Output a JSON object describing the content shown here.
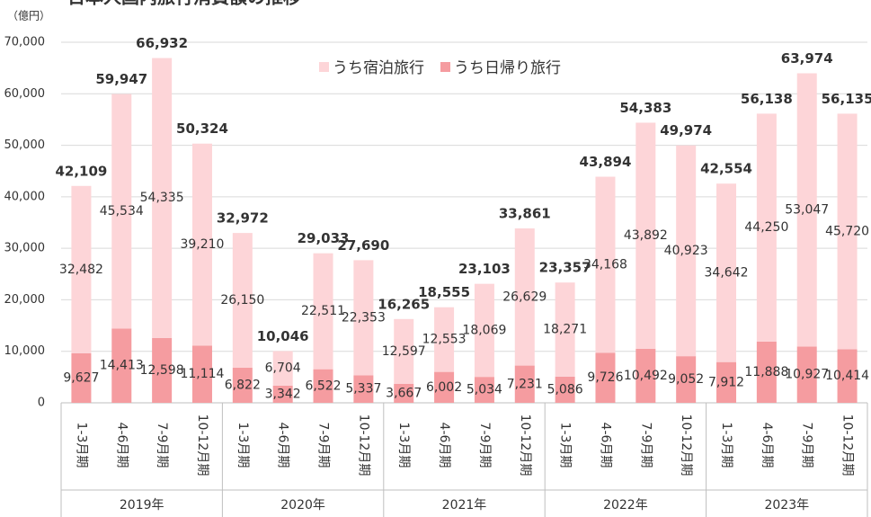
{
  "chart_data": {
    "type": "stacked-bar",
    "title": "日本人国内旅行消費額の推移",
    "y_unit": "（億円）",
    "categories": [
      "1-3月期",
      "4-6月期",
      "7-9月期",
      "10-12月期",
      "1-3月期",
      "4-6月期",
      "7-9月期",
      "10-12月期",
      "1-3月期",
      "4-6月期",
      "7-9月期",
      "10-12月期",
      "1-3月期",
      "4-6月期",
      "7-9月期",
      "10-12月期",
      "1-3月期",
      "4-6月期",
      "7-9月期",
      "10-12月期"
    ],
    "groups": [
      "2019年",
      "2020年",
      "2021年",
      "2022年",
      "2023年"
    ],
    "series": [
      {
        "name": "うち日帰り旅行",
        "color": "#f59ca0",
        "values": [
          9627,
          14413,
          12598,
          11114,
          6822,
          3342,
          6522,
          5337,
          3667,
          6002,
          5034,
          7231,
          5086,
          9726,
          10492,
          9052,
          7912,
          11888,
          10927,
          10414
        ],
        "value_labels": [
          "9,627",
          "14,413",
          "12,598",
          "11,114",
          "6,822",
          "3,342",
          "6,522",
          "5,337",
          "3,667",
          "6,002",
          "5,034",
          "7,231",
          "5,086",
          "9,726",
          "10,492",
          "9,052",
          "7,912",
          "11,888",
          "10,927",
          "10,414"
        ]
      },
      {
        "name": "うち宿泊旅行",
        "color": "#fdd5d8",
        "values": [
          32482,
          45534,
          54335,
          39210,
          26150,
          6704,
          22511,
          22353,
          12597,
          12553,
          18069,
          26629,
          18271,
          34168,
          43892,
          40923,
          34642,
          44250,
          53047,
          45720
        ],
        "value_labels": [
          "32,482",
          "45,534",
          "54,335",
          "39,210",
          "26,150",
          "6,704",
          "22,511",
          "22,353",
          "12,597",
          "12,553",
          "18,069",
          "26,629",
          "18,271",
          "34,168",
          "43,892",
          "40,923",
          "34,642",
          "44,250",
          "53,047",
          "45,720"
        ]
      }
    ],
    "totals": [
      42109,
      59947,
      66932,
      50324,
      32972,
      10046,
      29033,
      27690,
      16265,
      18555,
      23103,
      33861,
      23357,
      43894,
      54383,
      49974,
      42554,
      56138,
      63974,
      56135
    ],
    "total_labels": [
      "42,109",
      "59,947",
      "66,932",
      "50,324",
      "32,972",
      "10,046",
      "29,033",
      "27,690",
      "16,265",
      "18,555",
      "23,103",
      "33,861",
      "23,357",
      "43,894",
      "54,383",
      "49,974",
      "42,554",
      "56,138",
      "63,974",
      "56,135"
    ],
    "ylim": [
      0,
      70000
    ],
    "yticks": [
      0,
      {
        "value": 10000,
        "label": "10,000"
      },
      {
        "value": 20000,
        "label": "20,000"
      },
      {
        "value": 30000,
        "label": "30,000"
      },
      {
        "value": 40000,
        "label": "40,000"
      },
      {
        "value": 50000,
        "label": "50,000"
      },
      {
        "value": 60000,
        "label": "60,000"
      },
      {
        "value": 70000,
        "label": "70,000"
      }
    ],
    "grid": true
  }
}
